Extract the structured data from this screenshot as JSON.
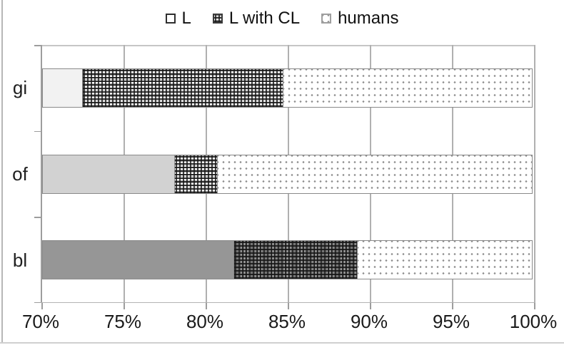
{
  "legend": {
    "items": [
      {
        "label": "L",
        "swatch": "plain"
      },
      {
        "label": "L with CL",
        "swatch": "weave"
      },
      {
        "label": "humans",
        "swatch": "dots"
      }
    ]
  },
  "chart_data": {
    "type": "bar",
    "orientation": "horizontal",
    "stacked": true,
    "title": "",
    "legend_position": "top",
    "grid": {
      "vertical": true,
      "horizontal": false
    },
    "x_axis": {
      "min": 70,
      "max": 100,
      "tick_step": 5,
      "tick_labels": [
        "70%",
        "75%",
        "80%",
        "85%",
        "90%",
        "95%",
        "100%"
      ]
    },
    "categories": [
      "gi",
      "of",
      "bl"
    ],
    "series_names": [
      "L",
      "L with CL",
      "humans"
    ],
    "rows": [
      {
        "category": "gi",
        "segments": [
          {
            "series": "L",
            "from": 70,
            "to": 72.5,
            "fill": "solid",
            "color": "#f2f2f2"
          },
          {
            "series": "L with CL",
            "from": 72.5,
            "to": 84.8,
            "fill": "weave",
            "base": "#ffffff"
          },
          {
            "series": "humans",
            "from": 84.8,
            "to": 100,
            "fill": "dots"
          }
        ]
      },
      {
        "category": "of",
        "segments": [
          {
            "series": "L",
            "from": 70,
            "to": 78.1,
            "fill": "solid",
            "color": "#d2d2d2"
          },
          {
            "series": "L with CL",
            "from": 78.1,
            "to": 80.8,
            "fill": "weave",
            "base": "#ffffff"
          },
          {
            "series": "humans",
            "from": 80.8,
            "to": 100,
            "fill": "dots"
          }
        ]
      },
      {
        "category": "bl",
        "segments": [
          {
            "series": "L",
            "from": 70,
            "to": 81.7,
            "fill": "solid",
            "color": "#969696"
          },
          {
            "series": "L with CL",
            "from": 81.7,
            "to": 89.3,
            "fill": "weave",
            "base": "#7a7a7a"
          },
          {
            "series": "humans",
            "from": 89.3,
            "to": 100,
            "fill": "dots"
          }
        ]
      }
    ],
    "colors": {
      "grid": "#b0b0b0",
      "axis": "#9d9d9d",
      "segment_border": "#8a8a8a",
      "text": "#1a1a1a"
    }
  }
}
